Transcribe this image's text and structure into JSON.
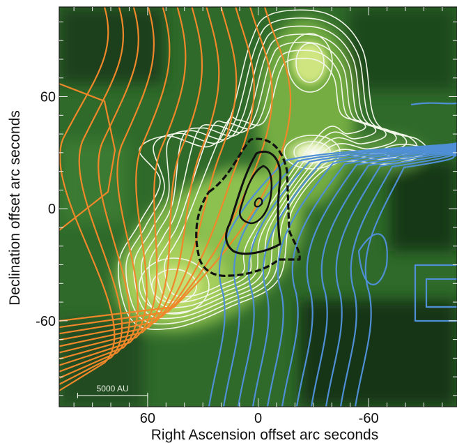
{
  "chart_data": {
    "type": "contour",
    "xlabel": "Right Ascension offset arc seconds",
    "ylabel": "Declination offset arc seconds",
    "xlim": [
      108,
      -108
    ],
    "ylim": [
      -106,
      108
    ],
    "x_ticks": [
      60,
      0,
      -60
    ],
    "y_ticks": [
      60,
      0,
      -60
    ],
    "x_tick_labels": [
      "60",
      "0",
      "-60"
    ],
    "y_tick_labels": [
      "60",
      "0",
      "-60"
    ],
    "scale_bar": {
      "label": "5000 AU",
      "x_from": 98,
      "x_to": 60,
      "y": -100
    },
    "grid": false,
    "colors": {
      "background_map": "#2f6a2a",
      "white_contours": "#f2f7ea",
      "orange_contours": "#f0882a",
      "blue_contours": "#4f8fd6",
      "black_contours": "#111111"
    },
    "peaks": [
      {
        "x": -28,
        "y": 30
      },
      {
        "x": -28,
        "y": 80
      },
      {
        "x": 50,
        "y": -42
      }
    ]
  }
}
